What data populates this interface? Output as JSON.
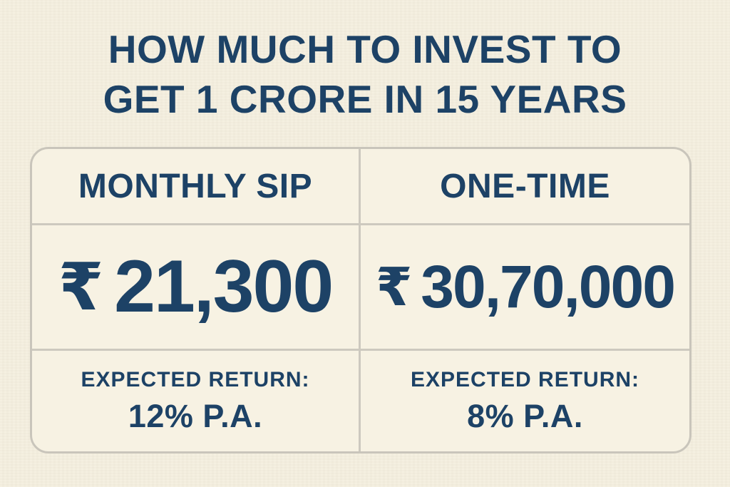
{
  "colors": {
    "page_background": "#f5efdf",
    "panel_background": "#f7f2e3",
    "border_gray": "#cdc9bf",
    "text_navy": "#1d4266"
  },
  "title": {
    "line1": "HOW MUCH TO INVEST TO",
    "line2": "GET 1 CRORE IN 15 YEARS"
  },
  "table": {
    "columns": [
      {
        "header": "MONTHLY SIP",
        "currency_symbol": "₹",
        "amount": "21,300",
        "return_label": "EXPECTED RETURN:",
        "return_value": "12% P.A."
      },
      {
        "header": "ONE-TIME",
        "currency_symbol": "₹",
        "amount": "30,70,000",
        "return_label": "EXPECTED RETURN:",
        "return_value": "8% P.A."
      }
    ]
  },
  "chart_data": {
    "type": "table",
    "title": "HOW MUCH TO INVEST TO GET 1 CRORE IN 15 YEARS",
    "target_amount": "1 Crore",
    "horizon_years": 15,
    "columns": [
      "MONTHLY SIP",
      "ONE-TIME"
    ],
    "rows": [
      [
        "₹ 21,300",
        "₹ 30,70,000"
      ],
      [
        "EXPECTED RETURN: 12% P.A.",
        "EXPECTED RETURN: 8% P.A."
      ]
    ]
  }
}
